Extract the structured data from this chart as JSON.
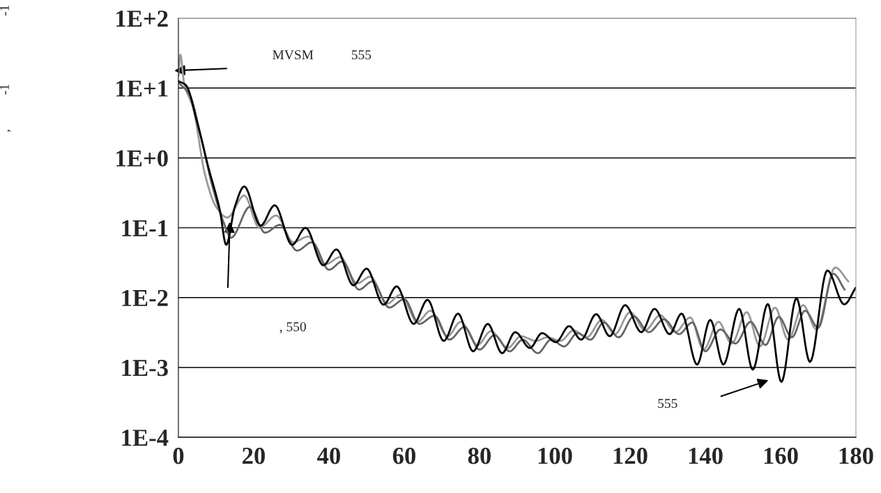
{
  "chart_data": {
    "type": "line",
    "xlim": [
      0,
      180
    ],
    "xticks": [
      0,
      20,
      40,
      60,
      80,
      100,
      120,
      140,
      160,
      180
    ],
    "ylim": [
      0.0001,
      100
    ],
    "log": "y",
    "yticks": [
      {
        "value": 0.0001,
        "label": "1E-4"
      },
      {
        "value": 0.001,
        "label": "1E-3"
      },
      {
        "value": 0.01,
        "label": "1E-2"
      },
      {
        "value": 0.1,
        "label": "1E-1"
      },
      {
        "value": 1,
        "label": "1E+0"
      },
      {
        "value": 10,
        "label": "1E+1"
      },
      {
        "value": 100,
        "label": "1E+2"
      }
    ],
    "grid": "y",
    "line_style": "solid",
    "marker": "none",
    "series": [
      {
        "color": "#999999",
        "x": [
          0,
          0.5,
          1.5,
          4,
          7,
          10,
          13,
          17.5,
          21.5,
          26,
          30.5,
          34.5,
          39,
          43,
          47.5,
          51,
          55.5,
          59,
          63.5,
          67,
          71.5,
          75,
          79.5,
          83,
          87.5,
          91,
          95,
          98,
          101.5,
          105,
          108.5,
          112.5,
          116,
          120,
          124,
          128,
          132,
          136,
          139.5,
          143.5,
          147,
          151,
          154.5,
          158.5,
          162,
          166,
          169.5,
          174.5,
          178
        ],
        "values": [
          15,
          30,
          12,
          5,
          0.6,
          0.2,
          0.14,
          0.29,
          0.1,
          0.15,
          0.062,
          0.075,
          0.03,
          0.038,
          0.016,
          0.02,
          0.0082,
          0.011,
          0.0045,
          0.0065,
          0.0028,
          0.0045,
          0.0021,
          0.0033,
          0.0019,
          0.0028,
          0.0024,
          0.0027,
          0.0024,
          0.0034,
          0.0027,
          0.0048,
          0.003,
          0.0062,
          0.0034,
          0.0056,
          0.0032,
          0.0052,
          0.0018,
          0.0045,
          0.0022,
          0.0062,
          0.002,
          0.0072,
          0.0025,
          0.0078,
          0.0035,
          0.027,
          0.017
        ]
      },
      {
        "color": "#666666",
        "x": [
          0,
          3,
          6,
          9,
          12,
          14,
          19,
          23,
          27,
          31.5,
          35.5,
          40,
          43.5,
          48,
          51.5,
          56,
          60,
          64,
          68,
          72,
          76,
          80,
          84,
          88,
          91.5,
          95.5,
          99,
          102.5,
          106,
          109.5,
          113,
          117,
          121,
          125,
          129,
          133,
          136.5,
          140,
          144,
          148,
          152,
          156,
          159.5,
          163,
          166.5,
          170,
          174,
          177
        ],
        "values": [
          12,
          8,
          2,
          0.4,
          0.12,
          0.072,
          0.2,
          0.085,
          0.11,
          0.047,
          0.062,
          0.025,
          0.033,
          0.013,
          0.017,
          0.0072,
          0.0095,
          0.0042,
          0.0055,
          0.0025,
          0.0038,
          0.0018,
          0.0029,
          0.0017,
          0.0025,
          0.0016,
          0.0025,
          0.002,
          0.0031,
          0.0025,
          0.0044,
          0.0027,
          0.0054,
          0.0032,
          0.0049,
          0.003,
          0.0044,
          0.0017,
          0.0035,
          0.0022,
          0.0045,
          0.0021,
          0.0053,
          0.0027,
          0.0065,
          0.0037,
          0.022,
          0.013
        ]
      },
      {
        "color": "#000000",
        "x": [
          0,
          2,
          5,
          8,
          11,
          12.7,
          15,
          17.5,
          21.8,
          25.6,
          30.2,
          33.8,
          38.5,
          42,
          46.5,
          50,
          54.5,
          58,
          62.5,
          66.2,
          70.5,
          74.3,
          78.3,
          82.2,
          86,
          89.5,
          93.4,
          96.6,
          100.3,
          103.8,
          107,
          111,
          114.6,
          118.7,
          123,
          126.5,
          130.5,
          133.7,
          137.8,
          141.3,
          144.8,
          149,
          152.6,
          156.6,
          160.2,
          164.2,
          167.8,
          172.4,
          176.9,
          180
        ],
        "values": [
          12.6,
          11,
          3.2,
          0.72,
          0.18,
          0.057,
          0.2,
          0.39,
          0.107,
          0.21,
          0.057,
          0.1,
          0.029,
          0.049,
          0.015,
          0.026,
          0.0079,
          0.0145,
          0.0042,
          0.0093,
          0.0024,
          0.0059,
          0.0017,
          0.0042,
          0.0016,
          0.0032,
          0.0019,
          0.0031,
          0.0023,
          0.0039,
          0.0025,
          0.0058,
          0.0028,
          0.0078,
          0.0032,
          0.0069,
          0.003,
          0.0059,
          0.0011,
          0.0048,
          0.0011,
          0.0069,
          0.00093,
          0.0081,
          0.00062,
          0.0098,
          0.0012,
          0.0245,
          0.008,
          0.014
        ]
      }
    ],
    "annotations": [
      "MVSM",
      "555",
      ", 550",
      "555",
      ",          -1                    -1"
    ]
  }
}
